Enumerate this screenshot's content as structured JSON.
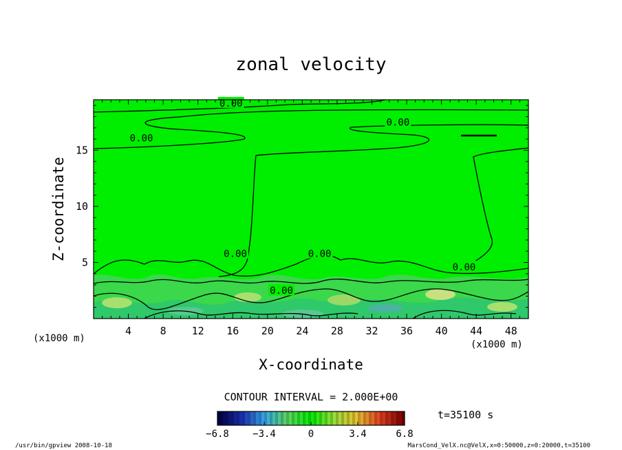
{
  "chart_data": {
    "type": "heatmap",
    "title": "zonal velocity",
    "xlabel": "X-coordinate",
    "ylabel": "Z-coordinate",
    "x_unit": "(x1000 m)",
    "xlim": [
      0,
      50
    ],
    "ylim": [
      0,
      19.5
    ],
    "x_ticks": [
      4,
      8,
      12,
      16,
      20,
      24,
      28,
      32,
      36,
      40,
      44,
      48
    ],
    "y_ticks": [
      5,
      10,
      15
    ],
    "contour_labels": [
      {
        "text": "0.00",
        "x": 15.8,
        "z": 19.2
      },
      {
        "text": "0.00",
        "x": 5.5,
        "z": 16.1
      },
      {
        "text": "0.00",
        "x": 35.0,
        "z": 17.5
      },
      {
        "text": "0.00",
        "x": 16.3,
        "z": 5.8
      },
      {
        "text": "0.00",
        "x": 26.0,
        "z": 5.8
      },
      {
        "text": "0.00",
        "x": 42.6,
        "z": 4.6
      },
      {
        "text": "0.00",
        "x": 21.6,
        "z": 2.5
      }
    ],
    "contour_interval_label": "CONTOUR INTERVAL = 2.000E+00",
    "colorbar": {
      "ticks": [
        "−6.8",
        "−3.4",
        "0",
        "3.4",
        "6.8"
      ],
      "range": [
        -6.8,
        6.8
      ],
      "colors": [
        "#000044",
        "#1a2fb0",
        "#38a8e8",
        "#5ad65a",
        "#00ee00",
        "#9adf38",
        "#e8c030",
        "#e04020",
        "#7a0000"
      ]
    },
    "time_label": "t=35100 s",
    "footer_left": "/usr/bin/gpview  2008-10-18",
    "footer_right": "MarsCond_VelX.nc@VelX,x=0:50000,z=0:20000,t=35100",
    "background_color": "#00ee00"
  }
}
